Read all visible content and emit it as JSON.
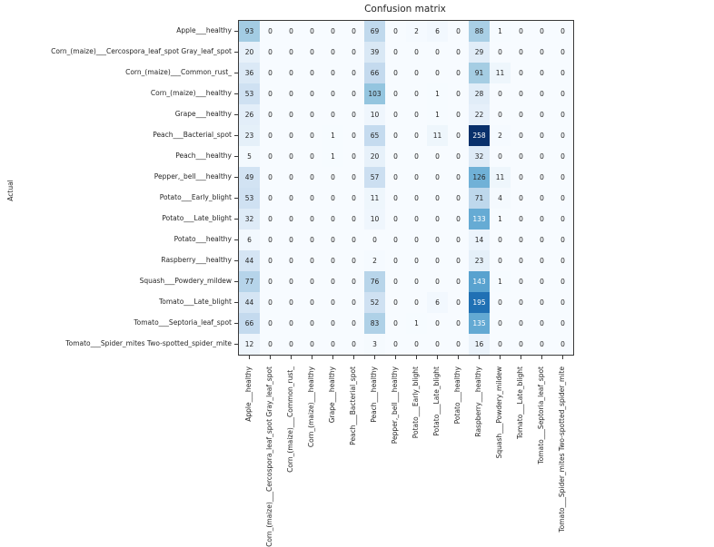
{
  "figure": {
    "title": "Confusion matrix",
    "y_axis_label": "Actual"
  },
  "chart_data": {
    "type": "heatmap",
    "title": "Confusion matrix",
    "xlabel": "",
    "ylabel": "Actual",
    "grid": false,
    "legend": "none",
    "categories": [
      "Apple___healthy",
      "Corn_(maize)___Cercospora_leaf_spot Gray_leaf_spot",
      "Corn_(maize)___Common_rust_",
      "Corn_(maize)___healthy",
      "Grape___healthy",
      "Peach___Bacterial_spot",
      "Peach___healthy",
      "Pepper,_bell___healthy",
      "Potato___Early_blight",
      "Potato___Late_blight",
      "Potato___healthy",
      "Raspberry___healthy",
      "Squash___Powdery_mildew",
      "Tomato___Late_blight",
      "Tomato___Septoria_leaf_spot",
      "Tomato___Spider_mites Two-spotted_spider_mite"
    ],
    "matrix": [
      [
        93,
        0,
        0,
        0,
        0,
        0,
        69,
        0,
        2,
        6,
        0,
        88,
        1,
        0,
        0,
        0
      ],
      [
        20,
        0,
        0,
        0,
        0,
        0,
        39,
        0,
        0,
        0,
        0,
        29,
        0,
        0,
        0,
        0
      ],
      [
        36,
        0,
        0,
        0,
        0,
        0,
        66,
        0,
        0,
        0,
        0,
        91,
        11,
        0,
        0,
        0
      ],
      [
        53,
        0,
        0,
        0,
        0,
        0,
        103,
        0,
        0,
        1,
        0,
        28,
        0,
        0,
        0,
        0
      ],
      [
        26,
        0,
        0,
        0,
        0,
        0,
        10,
        0,
        0,
        1,
        0,
        22,
        0,
        0,
        0,
        0
      ],
      [
        23,
        0,
        0,
        0,
        1,
        0,
        65,
        0,
        0,
        11,
        0,
        258,
        2,
        0,
        0,
        0
      ],
      [
        5,
        0,
        0,
        0,
        1,
        0,
        20,
        0,
        0,
        0,
        0,
        32,
        0,
        0,
        0,
        0
      ],
      [
        49,
        0,
        0,
        0,
        0,
        0,
        57,
        0,
        0,
        0,
        0,
        126,
        11,
        0,
        0,
        0
      ],
      [
        53,
        0,
        0,
        0,
        0,
        0,
        11,
        0,
        0,
        0,
        0,
        71,
        4,
        0,
        0,
        0
      ],
      [
        32,
        0,
        0,
        0,
        0,
        0,
        10,
        0,
        0,
        0,
        0,
        133,
        1,
        0,
        0,
        0
      ],
      [
        6,
        0,
        0,
        0,
        0,
        0,
        0,
        0,
        0,
        0,
        0,
        14,
        0,
        0,
        0,
        0
      ],
      [
        44,
        0,
        0,
        0,
        0,
        0,
        2,
        0,
        0,
        0,
        0,
        23,
        0,
        0,
        0,
        0
      ],
      [
        77,
        0,
        0,
        0,
        0,
        0,
        76,
        0,
        0,
        0,
        0,
        143,
        1,
        0,
        0,
        0
      ],
      [
        44,
        0,
        0,
        0,
        0,
        0,
        52,
        0,
        0,
        6,
        0,
        195,
        0,
        0,
        0,
        0
      ],
      [
        66,
        0,
        0,
        0,
        0,
        0,
        83,
        0,
        1,
        0,
        0,
        135,
        0,
        0,
        0,
        0
      ],
      [
        12,
        0,
        0,
        0,
        0,
        0,
        3,
        0,
        0,
        0,
        0,
        16,
        0,
        0,
        0,
        0
      ]
    ],
    "vmin": 0,
    "vmax": 258,
    "colormap": "Blues",
    "colormap_stops": [
      "#f7fbff",
      "#deebf7",
      "#c6dbef",
      "#9ecae1",
      "#6baed6",
      "#4292c6",
      "#2171b5",
      "#08519c",
      "#08306b"
    ],
    "cell_text_dark": "#262626",
    "cell_text_light": "#ffffff",
    "spine_color": "#3a3a3a",
    "background": "#ffffff"
  }
}
